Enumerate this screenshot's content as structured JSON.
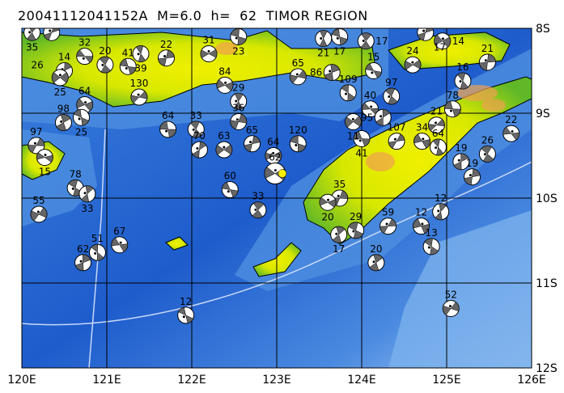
{
  "title": "20041112041152A  M=6.0  h=  62  TIMOR REGION",
  "map": {
    "lon_range": [
      120,
      126
    ],
    "lat_range_south": [
      8,
      12
    ],
    "lon_ticks": [
      "120E",
      "121E",
      "122E",
      "123E",
      "124E",
      "125E",
      "126E"
    ],
    "lat_ticks": [
      "8S",
      "9S",
      "10S",
      "11S",
      "12S"
    ],
    "colors": {
      "deep_ocean": "#1e5ccc",
      "shelf": "#5a98e4",
      "shallow": "#a8ccf4",
      "lowland": "#78c828",
      "highland": "#f0f000",
      "peak": "#f0a050",
      "compression": "#666666",
      "main_event": "#f8f000"
    }
  },
  "main_event": {
    "lon": 122.98,
    "lat": -9.71,
    "depth": "62"
  },
  "events": [
    {
      "lon": 120.74,
      "lat": -8.33,
      "depth": "32"
    },
    {
      "lon": 120.98,
      "lat": -8.43,
      "depth": "20"
    },
    {
      "lon": 120.5,
      "lat": -8.5,
      "depth": "14"
    },
    {
      "lon": 120.45,
      "lat": -8.58,
      "depth": "25"
    },
    {
      "lon": 121.25,
      "lat": -8.45,
      "depth": "41"
    },
    {
      "lon": 121.4,
      "lat": -8.3,
      "depth": "39"
    },
    {
      "lon": 121.7,
      "lat": -8.35,
      "depth": "22"
    },
    {
      "lon": 122.2,
      "lat": -8.3,
      "depth": "31"
    },
    {
      "lon": 122.55,
      "lat": -8.1,
      "depth": "23"
    },
    {
      "lon": 120.12,
      "lat": -8.05,
      "depth": "35"
    },
    {
      "lon": 120.35,
      "lat": -8.05,
      "depth": "26"
    },
    {
      "lon": 120.74,
      "lat": -8.9,
      "depth": "64"
    },
    {
      "lon": 120.7,
      "lat": -9.05,
      "depth": "25"
    },
    {
      "lon": 120.49,
      "lat": -9.11,
      "depth": "98"
    },
    {
      "lon": 120.17,
      "lat": -9.38,
      "depth": "97"
    },
    {
      "lon": 120.27,
      "lat": -9.52,
      "depth": "15"
    },
    {
      "lon": 120.63,
      "lat": -9.88,
      "depth": "78"
    },
    {
      "lon": 120.77,
      "lat": -9.95,
      "depth": "33"
    },
    {
      "lon": 120.2,
      "lat": -10.19,
      "depth": "55"
    },
    {
      "lon": 121.15,
      "lat": -10.55,
      "depth": "67"
    },
    {
      "lon": 120.89,
      "lat": -10.64,
      "depth": "51"
    },
    {
      "lon": 120.72,
      "lat": -10.76,
      "depth": "62"
    },
    {
      "lon": 121.38,
      "lat": -8.81,
      "depth": "130"
    },
    {
      "lon": 121.72,
      "lat": -9.19,
      "depth": "64"
    },
    {
      "lon": 122.05,
      "lat": -9.19,
      "depth": "33"
    },
    {
      "lon": 122.09,
      "lat": -9.43,
      "depth": "70"
    },
    {
      "lon": 122.38,
      "lat": -9.43,
      "depth": "63"
    },
    {
      "lon": 122.45,
      "lat": -9.9,
      "depth": "60"
    },
    {
      "lon": 122.78,
      "lat": -10.14,
      "depth": "33"
    },
    {
      "lon": 122.71,
      "lat": -9.36,
      "depth": "65"
    },
    {
      "lon": 122.96,
      "lat": -9.5,
      "depth": "64"
    },
    {
      "lon": 123.25,
      "lat": -9.36,
      "depth": "120"
    },
    {
      "lon": 122.55,
      "lat": -8.86,
      "depth": "29"
    },
    {
      "lon": 122.55,
      "lat": -9.1,
      "depth": "36"
    },
    {
      "lon": 122.39,
      "lat": -8.67,
      "depth": "84"
    },
    {
      "lon": 121.93,
      "lat": -11.38,
      "depth": "12"
    },
    {
      "lon": 124.17,
      "lat": -10.76,
      "depth": "20"
    },
    {
      "lon": 124.31,
      "lat": -10.33,
      "depth": "59"
    },
    {
      "lon": 124.7,
      "lat": -10.33,
      "depth": "12"
    },
    {
      "lon": 124.82,
      "lat": -10.57,
      "depth": "13"
    },
    {
      "lon": 124.93,
      "lat": -10.16,
      "depth": "12"
    },
    {
      "lon": 125.05,
      "lat": -11.3,
      "depth": "52"
    },
    {
      "lon": 125.76,
      "lat": -9.24,
      "depth": "22"
    },
    {
      "lon": 125.48,
      "lat": -9.48,
      "depth": "26"
    },
    {
      "lon": 125.17,
      "lat": -9.57,
      "depth": "19"
    },
    {
      "lon": 124.88,
      "lat": -9.14,
      "depth": "21"
    },
    {
      "lon": 125.07,
      "lat": -8.95,
      "depth": "78"
    },
    {
      "lon": 125.19,
      "lat": -8.62,
      "depth": "16"
    },
    {
      "lon": 125.48,
      "lat": -8.4,
      "depth": "21"
    },
    {
      "lon": 124.6,
      "lat": -8.43,
      "depth": "24"
    },
    {
      "lon": 124.14,
      "lat": -8.5,
      "depth": "15"
    },
    {
      "lon": 124.05,
      "lat": -8.15,
      "depth": "17"
    },
    {
      "lon": 124.75,
      "lat": -8.05,
      "depth": "17"
    },
    {
      "lon": 124.95,
      "lat": -8.15,
      "depth": "14"
    },
    {
      "lon": 123.74,
      "lat": -8.1,
      "depth": "17"
    },
    {
      "lon": 123.55,
      "lat": -8.12,
      "depth": "21"
    },
    {
      "lon": 123.74,
      "lat": -10.0,
      "depth": "35"
    },
    {
      "lon": 123.6,
      "lat": -10.05,
      "depth": "20"
    },
    {
      "lon": 123.93,
      "lat": -10.38,
      "depth": "29"
    },
    {
      "lon": 123.73,
      "lat": -10.43,
      "depth": "17"
    },
    {
      "lon": 124.41,
      "lat": -9.33,
      "depth": "107"
    },
    {
      "lon": 124.71,
      "lat": -9.33,
      "depth": "34"
    },
    {
      "lon": 123.84,
      "lat": -8.76,
      "depth": "109"
    },
    {
      "lon": 123.65,
      "lat": -8.52,
      "depth": "86"
    },
    {
      "lon": 123.25,
      "lat": -8.57,
      "depth": "65"
    },
    {
      "lon": 124.1,
      "lat": -8.95,
      "depth": "40"
    },
    {
      "lon": 124.35,
      "lat": -8.8,
      "depth": "97"
    },
    {
      "lon": 124.25,
      "lat": -9.05,
      "depth": "95"
    },
    {
      "lon": 123.9,
      "lat": -9.1,
      "depth": "11"
    },
    {
      "lon": 124.0,
      "lat": -9.3,
      "depth": "41"
    },
    {
      "lon": 124.9,
      "lat": -9.4,
      "depth": "64"
    },
    {
      "lon": 125.3,
      "lat": -9.75,
      "depth": "19"
    }
  ]
}
